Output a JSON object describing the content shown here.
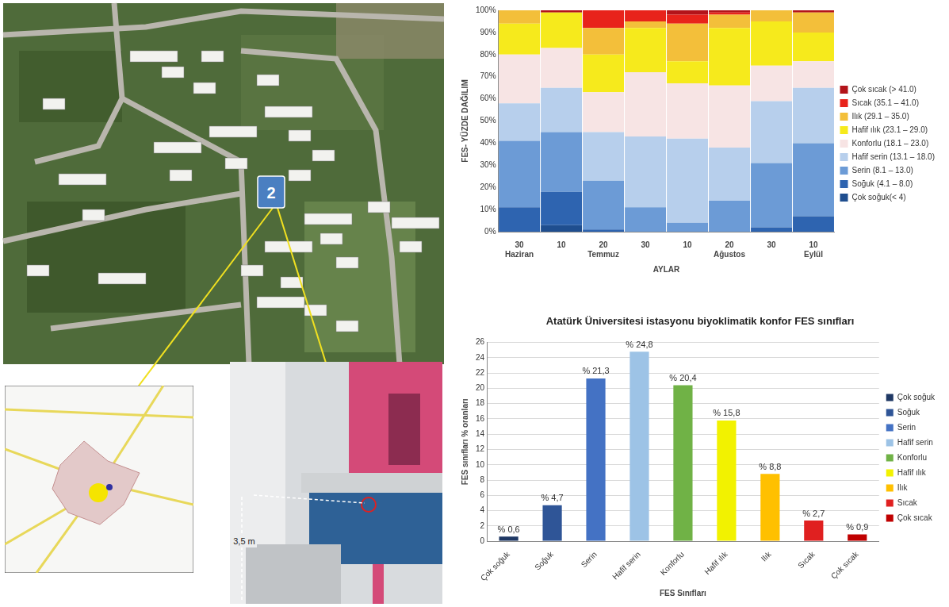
{
  "map": {
    "marker_label": "2"
  },
  "photo": {
    "height_label": "3,5 m"
  },
  "chart_data": [
    {
      "type": "bar",
      "stacked": true,
      "categories": [
        "30",
        "10",
        "20",
        "30",
        "10",
        "20",
        "30",
        "10"
      ],
      "month_labels": [
        "Haziran",
        null,
        "Temmuz",
        null,
        null,
        "Ağustos",
        null,
        "Eylül"
      ],
      "x_label": "AYLAR",
      "y_label": "FES- YÜZDE DAĞILIM",
      "ylim": [
        0,
        100
      ],
      "yticks": [
        {
          "value": 0,
          "label": "0%"
        },
        {
          "value": 10,
          "label": "10%"
        },
        {
          "value": 20,
          "label": "20%"
        },
        {
          "value": 30,
          "label": "30%"
        },
        {
          "value": 40,
          "label": "40%"
        },
        {
          "value": 50,
          "label": "50%"
        },
        {
          "value": 60,
          "label": "60%"
        },
        {
          "value": 70,
          "label": "70%"
        },
        {
          "value": 80,
          "label": "80%"
        },
        {
          "value": 90,
          "label": "90%"
        },
        {
          "value": 100,
          "label": "100%"
        }
      ],
      "grid": false,
      "legend": "right",
      "series": [
        {
          "name": "Çok soğuk(< 4)",
          "color": "#1f4e8f",
          "values": [
            0,
            3,
            0,
            0,
            0,
            0,
            0,
            0
          ]
        },
        {
          "name": "Soğuk (4.1 – 8.0)",
          "color": "#2e64b0",
          "values": [
            11,
            15,
            1,
            0,
            0,
            0,
            2,
            7
          ]
        },
        {
          "name": "Serin (8.1 – 13.0)",
          "color": "#6c9bd6",
          "values": [
            30,
            27,
            22,
            11,
            4,
            14,
            29,
            33
          ]
        },
        {
          "name": "Hafif serin (13.1 – 18.0)",
          "color": "#b7cfec",
          "values": [
            17,
            20,
            22,
            32,
            38,
            24,
            28,
            25
          ]
        },
        {
          "name": "Konforlu (18.1 – 23.0)",
          "color": "#f7e4e4",
          "values": [
            22,
            18,
            18,
            29,
            25,
            28,
            16,
            12
          ]
        },
        {
          "name": "Hafif ılık (23.1 – 29.0)",
          "color": "#f6ea1c",
          "values": [
            14,
            16,
            17,
            20,
            10,
            26,
            20,
            13
          ]
        },
        {
          "name": "Ilık (29.1 – 35.0)",
          "color": "#f3bf3a",
          "values": [
            6,
            0,
            12,
            3,
            17,
            6,
            5,
            9
          ]
        },
        {
          "name": "Sıcak (35.1 – 41.0)",
          "color": "#e8231b",
          "values": [
            0,
            0,
            8,
            5,
            4,
            1,
            0,
            0
          ]
        },
        {
          "name": "Çok sıcak (> 41.0)",
          "color": "#b3141a",
          "values": [
            0,
            1,
            0,
            0,
            2,
            1,
            0,
            1
          ]
        }
      ]
    },
    {
      "type": "bar",
      "title": "Atatürk Üniversitesi istasyonu biyoklimatik konfor FES sınıfları",
      "categories": [
        "Çok soğuk",
        "Soğuk",
        "Serin",
        "Hafif serin",
        "Konforlu",
        "Hafif ılık",
        "Ilık",
        "Sıcak",
        "Çok sıcak"
      ],
      "values": [
        0.6,
        4.7,
        21.3,
        24.8,
        20.4,
        15.8,
        8.8,
        2.7,
        0.9
      ],
      "value_labels": [
        "% 0,6",
        "% 4,7",
        "% 21,3",
        "% 24,8",
        "% 20,4",
        "% 15,8",
        "% 8,8",
        "% 2,7",
        "% 0,9"
      ],
      "colors": [
        "#1f3864",
        "#2f5597",
        "#4472c4",
        "#9dc3e6",
        "#70b246",
        "#f2f200",
        "#ffc000",
        "#e02020",
        "#c00000"
      ],
      "x_label": "FES Sınıfları",
      "y_label": "FES sınıfları % oranları",
      "ylim": [
        0,
        26
      ],
      "yticks": [
        0,
        2,
        4,
        6,
        8,
        10,
        12,
        14,
        16,
        18,
        20,
        22,
        24,
        26
      ],
      "grid": true,
      "legend": "right",
      "data_labels": true
    }
  ]
}
